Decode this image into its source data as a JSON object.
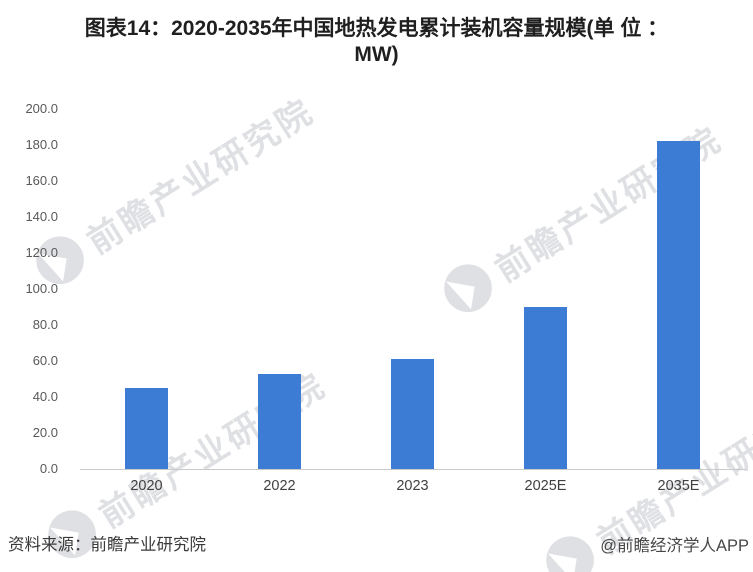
{
  "title": {
    "line1": "图表14：2020-2035年中国地热发电累计装机容量规模(单 位 ：",
    "line2": "MW)"
  },
  "chart_data": {
    "type": "bar",
    "title": "图表14：2020-2035年中国地热发电累计装机容量规模(单位：MW)",
    "categories": [
      "2020",
      "2022",
      "2023",
      "2025E",
      "2035E"
    ],
    "values": [
      45,
      53,
      61,
      90,
      182
    ],
    "unit": "MW",
    "xlabel": "",
    "ylabel": "",
    "ylim": [
      0,
      200
    ],
    "ytick_step": 20,
    "ytick_labels_top_to_bottom": [
      "200.0",
      "180.0",
      "160.0",
      "140.0",
      "120.0",
      "100.0",
      "80.0",
      "60.0",
      "40.0",
      "20.0",
      "0.0"
    ],
    "grid": false,
    "legend": "none",
    "bar_color": "#3c7cd4"
  },
  "watermark": {
    "text": "前瞻产业研究院"
  },
  "footer": {
    "source": "资料来源：前瞻产业研究院",
    "credit": "@前瞻经济学人APP"
  },
  "colors": {
    "bar": "#3c7cd4",
    "axis_line": "#c9c9c9",
    "ytick_text": "#595959",
    "xtick_text": "#404040",
    "title_text": "#1f1f1f",
    "footer_text": "#3a3a3a",
    "watermark": "#b9bcc2"
  }
}
